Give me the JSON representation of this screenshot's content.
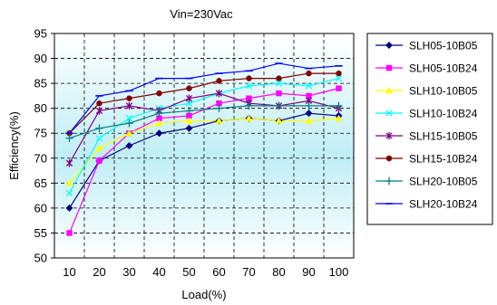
{
  "chart_data": {
    "type": "line",
    "title": "Vin=230Vac",
    "xlabel": "Load(%)",
    "ylabel": "Efficiency(%)",
    "x": [
      10,
      20,
      30,
      40,
      50,
      60,
      70,
      80,
      90,
      100
    ],
    "xlim": [
      5,
      105
    ],
    "ylim": [
      50,
      95
    ],
    "yticks": [
      50,
      55,
      60,
      65,
      70,
      75,
      80,
      85,
      90,
      95
    ],
    "grid": true,
    "legend_position": "right",
    "series": [
      {
        "name": "SLH05-10B05",
        "color": "#000080",
        "marker": "diamond",
        "values": [
          60,
          69.5,
          72.5,
          75,
          76,
          77.5,
          78,
          77.5,
          79,
          78.5
        ]
      },
      {
        "name": "SLH05-10B24",
        "color": "#ff00ff",
        "marker": "square",
        "values": [
          55,
          69.5,
          75,
          78,
          78.5,
          81,
          82,
          83,
          82.5,
          84
        ]
      },
      {
        "name": "SLH10-10B05",
        "color": "#ffff00",
        "marker": "triangle",
        "values": [
          65,
          72,
          75,
          77,
          77.5,
          77.5,
          78,
          77.5,
          77.5,
          78
        ]
      },
      {
        "name": "SLH10-10B24",
        "color": "#00ffff",
        "marker": "x",
        "values": [
          63,
          74,
          78,
          80,
          81,
          83,
          84.5,
          85,
          84.5,
          86
        ]
      },
      {
        "name": "SLH15-10B05",
        "color": "#800080",
        "marker": "star",
        "values": [
          69,
          79.5,
          80.5,
          79.5,
          82,
          83,
          81,
          80.5,
          81.5,
          80
        ]
      },
      {
        "name": "SLH15-10B24",
        "color": "#800000",
        "marker": "circle",
        "values": [
          75,
          81,
          82,
          83,
          84,
          85.5,
          86,
          86,
          87,
          87
        ]
      },
      {
        "name": "SLH20-10B05",
        "color": "#008080",
        "marker": "plus",
        "values": [
          74,
          76,
          77,
          79,
          79.5,
          80,
          80.5,
          80.5,
          80.5,
          80.5
        ]
      },
      {
        "name": "SLH20-10B24",
        "color": "#0000ff",
        "marker": "dash",
        "values": [
          75,
          82.5,
          83.5,
          86,
          86,
          87,
          87.5,
          89,
          88,
          88.5
        ]
      }
    ]
  }
}
